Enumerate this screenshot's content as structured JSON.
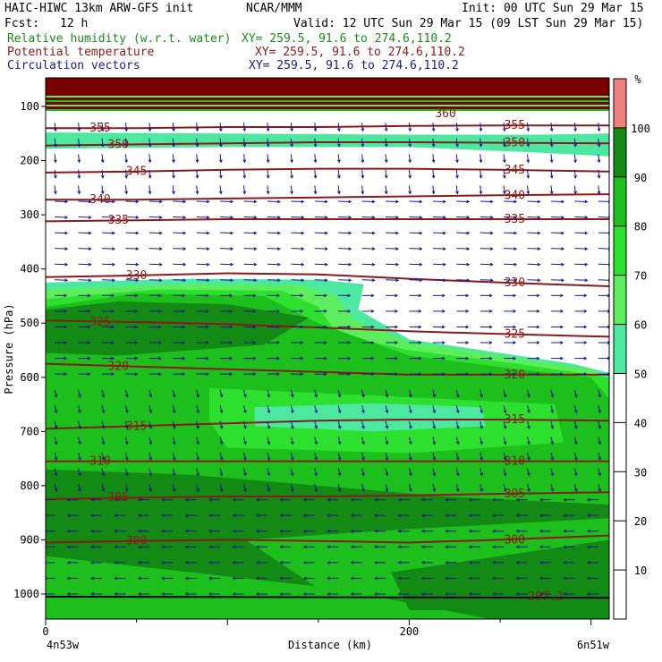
{
  "header": {
    "model": "HAIC-HIWC 13km ARW-GFS init",
    "org": "NCAR/MMM",
    "init": "Init: 00 UTC Sun 29 Mar 15",
    "fcst_label": "Fcst:",
    "fcst_value": "12 h",
    "valid": "Valid: 12 UTC Sun 29 Mar 15 (09 LST Sun 29 Mar 15)",
    "fields": [
      {
        "name": "Relative humidity (w.r.t. water)",
        "xy": "XY= 259.5, 91.6 to 274.6,110.2",
        "color": "#1a8c1a"
      },
      {
        "name": "Potential temperature",
        "xy": "XY= 259.5, 91.6 to 274.6,110.2",
        "color": "#8b1a1a"
      },
      {
        "name": "Circulation vectors",
        "xy": "XY= 259.5, 91.6 to 274.6,110.2",
        "color": "#1a1a8b"
      }
    ]
  },
  "chart_data": {
    "type": "heatmap",
    "ylabel": "Pressure (hPa)",
    "xlabel": "Distance (km)",
    "x_left_label": "4n53w",
    "x_right_label": "6n51w",
    "x_ticks": [
      0,
      200
    ],
    "xlim": [
      0,
      310
    ],
    "y_ticks": [
      100,
      200,
      300,
      400,
      500,
      600,
      700,
      800,
      900,
      1000
    ],
    "ylim": [
      1050,
      50
    ],
    "colorbar": {
      "unit": "%",
      "tick_labels": [
        "10",
        "20",
        "30",
        "40",
        "50",
        "60",
        "70",
        "80",
        "90",
        "100"
      ],
      "levels": [
        {
          "min": 100,
          "color": "#f08080"
        },
        {
          "min": 90,
          "color": "#138a13"
        },
        {
          "min": 80,
          "color": "#1cbf1c"
        },
        {
          "min": 70,
          "color": "#2ee02e"
        },
        {
          "min": 60,
          "color": "#5ced5c"
        },
        {
          "min": 50,
          "color": "#4de8a0"
        },
        {
          "min": 0,
          "color": "#ffffff"
        }
      ]
    },
    "theta_contours": [
      {
        "label": "355",
        "p": [
          140,
          140,
          138,
          138,
          136,
          135,
          135
        ]
      },
      {
        "label": "350",
        "p": [
          172,
          170,
          168,
          166,
          166,
          167,
          168
        ]
      },
      {
        "label": "345",
        "p": [
          222,
          220,
          217,
          215,
          215,
          217,
          220
        ]
      },
      {
        "label": "340",
        "p": [
          272,
          272,
          270,
          268,
          266,
          264,
          262
        ]
      },
      {
        "label": "335",
        "p": [
          312,
          310,
          308,
          308,
          308,
          308,
          308
        ]
      },
      {
        "label": "330",
        "p": [
          415,
          412,
          408,
          410,
          418,
          425,
          432
        ]
      },
      {
        "label": "325",
        "p": [
          495,
          498,
          502,
          508,
          515,
          520,
          525
        ]
      },
      {
        "label": "320",
        "p": [
          575,
          580,
          585,
          590,
          595,
          595,
          595
        ]
      },
      {
        "label": "315",
        "p": [
          695,
          690,
          685,
          680,
          678,
          678,
          680
        ]
      },
      {
        "label": "310",
        "p": [
          755,
          755,
          755,
          755,
          755,
          755,
          755
        ]
      },
      {
        "label": "305",
        "p": [
          825,
          822,
          820,
          820,
          818,
          815,
          812
        ]
      },
      {
        "label": "300",
        "p": [
          905,
          902,
          900,
          902,
          905,
          900,
          892
        ]
      }
    ],
    "theta_x": [
      0,
      50,
      100,
      150,
      200,
      250,
      310
    ],
    "extra_labels": [
      {
        "text": "360",
        "x": 220,
        "p": 113
      },
      {
        "text": "297.2",
        "x": 275,
        "p": 1005
      }
    ],
    "annotations": []
  }
}
